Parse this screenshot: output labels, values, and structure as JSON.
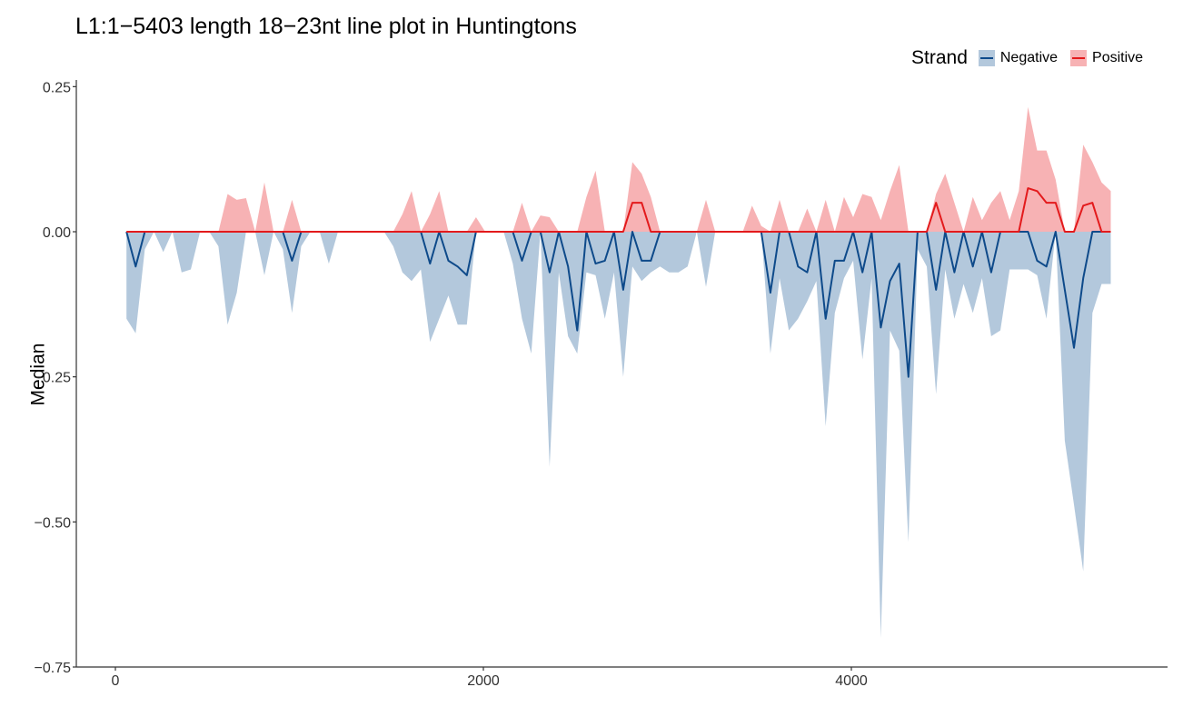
{
  "chart_data": {
    "type": "line",
    "title": "L1:1−5403 length 18−23nt line plot in Huntingtons",
    "xlabel": "",
    "ylabel": "Median",
    "xlim": [
      -200,
      5600
    ],
    "ylim": [
      -0.75,
      0.26
    ],
    "xticks": [
      0,
      2000,
      4000
    ],
    "xtick_labels": [
      "0",
      "2000",
      "4000"
    ],
    "yticks": [
      0.25,
      0.0,
      -0.25,
      -0.5,
      -0.75
    ],
    "ytick_labels": [
      "0.25",
      "0.00",
      "−0.25",
      "−0.50",
      "−0.75"
    ],
    "grid": false,
    "legend": {
      "title": "Strand",
      "position": "top-right",
      "entries": [
        "Negative",
        "Positive"
      ]
    },
    "colors": {
      "negative_line": "#0e4a8a",
      "negative_fill": "#b3c8dc",
      "positive_line": "#e31a1c",
      "positive_fill": "#f7b2b4",
      "axis": "#333333"
    },
    "series": [
      {
        "name": "Negative",
        "x": [
          60,
          110,
          160,
          210,
          260,
          310,
          360,
          410,
          460,
          510,
          560,
          610,
          660,
          710,
          760,
          810,
          860,
          910,
          960,
          1010,
          1060,
          1110,
          1160,
          1210,
          1260,
          1310,
          1360,
          1410,
          1460,
          1510,
          1560,
          1610,
          1660,
          1710,
          1760,
          1810,
          1860,
          1910,
          1960,
          2010,
          2060,
          2110,
          2160,
          2210,
          2260,
          2310,
          2360,
          2410,
          2460,
          2510,
          2560,
          2610,
          2660,
          2710,
          2760,
          2810,
          2860,
          2910,
          2960,
          3010,
          3060,
          3110,
          3160,
          3210,
          3260,
          3310,
          3360,
          3410,
          3460,
          3510,
          3560,
          3610,
          3660,
          3710,
          3760,
          3810,
          3860,
          3910,
          3960,
          4010,
          4060,
          4110,
          4160,
          4210,
          4260,
          4310,
          4360,
          4410,
          4460,
          4510,
          4560,
          4610,
          4660,
          4710,
          4760,
          4810,
          4860,
          4910,
          4960,
          5010,
          5060,
          5110,
          5160,
          5210,
          5260,
          5310,
          5360,
          5410
        ],
        "median": [
          0,
          -0.06,
          0,
          0,
          0,
          0,
          0,
          0,
          0,
          0,
          0,
          0,
          0,
          0,
          0,
          0,
          0,
          0,
          -0.05,
          0,
          0,
          0,
          0,
          0,
          0,
          0,
          0,
          0,
          0,
          0,
          0,
          0,
          0,
          -0.055,
          0,
          -0.05,
          -0.06,
          -0.075,
          0,
          0,
          0,
          0,
          0,
          -0.05,
          0,
          0,
          -0.07,
          0,
          -0.06,
          -0.17,
          0,
          -0.055,
          -0.05,
          0,
          -0.1,
          0,
          -0.05,
          -0.05,
          0,
          0,
          0,
          0,
          0,
          0,
          0,
          0,
          0,
          0,
          0,
          0,
          -0.105,
          0,
          0,
          -0.06,
          -0.07,
          0,
          -0.15,
          -0.05,
          -0.05,
          0,
          -0.07,
          0,
          -0.165,
          -0.085,
          -0.055,
          -0.25,
          0,
          0,
          -0.1,
          0,
          -0.07,
          0,
          -0.06,
          0,
          -0.07,
          0,
          0,
          0,
          0,
          -0.05,
          -0.06,
          0,
          -0.1,
          -0.2,
          -0.08,
          0,
          0,
          0
        ],
        "lower": [
          -0.15,
          -0.175,
          -0.03,
          0,
          -0.035,
          0,
          -0.07,
          -0.065,
          0,
          0,
          -0.025,
          -0.16,
          -0.105,
          0,
          0,
          -0.075,
          0,
          -0.03,
          -0.14,
          -0.025,
          0,
          0,
          -0.055,
          0,
          0,
          0,
          0,
          0,
          0,
          -0.025,
          -0.07,
          -0.085,
          -0.065,
          -0.19,
          -0.15,
          -0.11,
          -0.16,
          -0.16,
          0,
          0,
          0,
          0,
          -0.055,
          -0.15,
          -0.21,
          0,
          -0.405,
          -0.07,
          -0.18,
          -0.21,
          -0.07,
          -0.075,
          -0.15,
          -0.07,
          -0.25,
          -0.06,
          -0.085,
          -0.07,
          -0.06,
          -0.07,
          -0.07,
          -0.06,
          0,
          -0.095,
          0,
          0,
          0,
          0,
          0,
          0,
          -0.21,
          -0.08,
          -0.17,
          -0.15,
          -0.12,
          -0.085,
          -0.335,
          -0.14,
          -0.08,
          -0.05,
          -0.22,
          -0.08,
          -0.7,
          -0.17,
          -0.205,
          -0.535,
          -0.03,
          -0.06,
          -0.28,
          -0.065,
          -0.15,
          -0.09,
          -0.14,
          -0.08,
          -0.18,
          -0.17,
          -0.065,
          -0.065,
          -0.065,
          -0.075,
          -0.15,
          0,
          -0.36,
          -0.47,
          -0.585,
          -0.14,
          -0.09,
          -0.09
        ],
        "upper": [
          0,
          0,
          0,
          0,
          0,
          0,
          0,
          0,
          0,
          0,
          0,
          0,
          0,
          0,
          0,
          0,
          0,
          0,
          0,
          0,
          0,
          0,
          0,
          0,
          0,
          0,
          0,
          0,
          0,
          0,
          0,
          0,
          0,
          0,
          0,
          0,
          0,
          0,
          0,
          0,
          0,
          0,
          0,
          0,
          0,
          0,
          0,
          0,
          0,
          0,
          0,
          0,
          0,
          0,
          0,
          0,
          0,
          0,
          0,
          0,
          0,
          0,
          0,
          0,
          0,
          0,
          0,
          0,
          0,
          0,
          0,
          0,
          0,
          0,
          0,
          0,
          0,
          0,
          0,
          0,
          0,
          0,
          0,
          0,
          0,
          0,
          0,
          0,
          0,
          0,
          0,
          0,
          0,
          0,
          0,
          0,
          0,
          0,
          0,
          0,
          0,
          0,
          0,
          0,
          0,
          0,
          0,
          0
        ]
      },
      {
        "name": "Positive",
        "x": [
          60,
          110,
          160,
          210,
          260,
          310,
          360,
          410,
          460,
          510,
          560,
          610,
          660,
          710,
          760,
          810,
          860,
          910,
          960,
          1010,
          1060,
          1110,
          1160,
          1210,
          1260,
          1310,
          1360,
          1410,
          1460,
          1510,
          1560,
          1610,
          1660,
          1710,
          1760,
          1810,
          1860,
          1910,
          1960,
          2010,
          2060,
          2110,
          2160,
          2210,
          2260,
          2310,
          2360,
          2410,
          2460,
          2510,
          2560,
          2610,
          2660,
          2710,
          2760,
          2810,
          2860,
          2910,
          2960,
          3010,
          3060,
          3110,
          3160,
          3210,
          3260,
          3310,
          3360,
          3410,
          3460,
          3510,
          3560,
          3610,
          3660,
          3710,
          3760,
          3810,
          3860,
          3910,
          3960,
          4010,
          4060,
          4110,
          4160,
          4210,
          4260,
          4310,
          4360,
          4410,
          4460,
          4510,
          4560,
          4610,
          4660,
          4710,
          4760,
          4810,
          4860,
          4910,
          4960,
          5010,
          5060,
          5110,
          5160,
          5210,
          5260,
          5310,
          5360,
          5410
        ],
        "median": [
          0,
          0,
          0,
          0,
          0,
          0,
          0,
          0,
          0,
          0,
          0,
          0,
          0,
          0,
          0,
          0,
          0,
          0,
          0,
          0,
          0,
          0,
          0,
          0,
          0,
          0,
          0,
          0,
          0,
          0,
          0,
          0,
          0,
          0,
          0,
          0,
          0,
          0,
          0,
          0,
          0,
          0,
          0,
          0,
          0,
          0,
          0,
          0,
          0,
          0,
          0,
          0,
          0,
          0,
          0,
          0.05,
          0.05,
          0,
          0,
          0,
          0,
          0,
          0,
          0,
          0,
          0,
          0,
          0,
          0,
          0,
          0,
          0,
          0,
          0,
          0,
          0,
          0,
          0,
          0,
          0,
          0,
          0,
          0,
          0,
          0,
          0,
          0,
          0,
          0.05,
          0,
          0,
          0,
          0,
          0,
          0,
          0,
          0,
          0,
          0.075,
          0.07,
          0.05,
          0.05,
          0,
          0,
          0.045,
          0.05,
          0,
          0
        ],
        "lower": [
          0,
          0,
          0,
          0,
          0,
          0,
          0,
          0,
          0,
          0,
          0,
          0,
          0,
          0,
          0,
          0,
          0,
          0,
          0,
          0,
          0,
          0,
          0,
          0,
          0,
          0,
          0,
          0,
          0,
          0,
          0,
          0,
          0,
          0,
          0,
          0,
          0,
          0,
          0,
          0,
          0,
          0,
          0,
          0,
          0,
          0,
          0,
          0,
          0,
          0,
          0,
          0,
          0,
          0,
          0,
          0,
          0,
          0,
          0,
          0,
          0,
          0,
          0,
          0,
          0,
          0,
          0,
          0,
          0,
          0,
          0,
          0,
          0,
          0,
          0,
          0,
          0,
          0,
          0,
          0,
          0,
          0,
          0,
          0,
          0,
          0,
          0,
          0,
          0,
          0,
          0,
          0,
          0,
          0,
          0,
          0,
          0,
          0,
          0,
          0,
          0,
          0,
          0,
          0,
          0,
          0,
          0,
          0
        ],
        "upper": [
          0,
          0,
          0,
          0,
          0,
          0,
          0,
          0,
          0,
          0,
          0,
          0.065,
          0.055,
          0.058,
          0,
          0.085,
          0,
          0,
          0.055,
          0,
          0,
          0,
          0,
          0,
          0,
          0,
          0,
          0,
          0,
          0,
          0.03,
          0.07,
          0,
          0.03,
          0.07,
          0,
          0,
          0,
          0.025,
          0,
          0,
          0,
          0,
          0.05,
          0,
          0.028,
          0.025,
          0,
          0,
          0,
          0.06,
          0.105,
          0,
          0,
          0,
          0.12,
          0.1,
          0.06,
          0,
          0,
          0,
          0,
          0,
          0.055,
          0,
          0,
          0,
          0,
          0.045,
          0.01,
          0,
          0.055,
          0,
          0,
          0.04,
          0,
          0.055,
          0,
          0.06,
          0.025,
          0.065,
          0.06,
          0.02,
          0.07,
          0.115,
          0,
          0,
          0,
          0.065,
          0.1,
          0.05,
          0,
          0.06,
          0.02,
          0.05,
          0.07,
          0.02,
          0.07,
          0.215,
          0.14,
          0.14,
          0.09,
          0,
          0,
          0.15,
          0.12,
          0.085,
          0.07
        ]
      }
    ]
  }
}
